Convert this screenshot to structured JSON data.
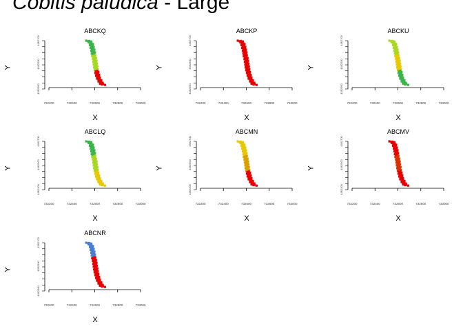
{
  "title": {
    "species": "Cobitis paludica",
    "separator": " - ",
    "size_class": "Large"
  },
  "chart_data": {
    "type": "scatter",
    "xlabel": "X",
    "ylabel": "Y",
    "xlim": [
      732200,
      733000
    ],
    "ylim": [
      4382280,
      4382700
    ],
    "x_ticks": [
      "732200",
      "732400",
      "732600",
      "732800",
      "733000"
    ],
    "y_ticks": [
      "4382300",
      "4382500",
      "4382700"
    ],
    "grid": false,
    "legend": "none",
    "panels": [
      {
        "name": "ABCKQ",
        "colors": {
          "top": "#3cb44b",
          "mid": "#a8d820",
          "bottom": "#e60000"
        }
      },
      {
        "name": "ABCKP",
        "colors": {
          "top": "#e60000",
          "mid": "#e60000",
          "bottom": "#e60000"
        }
      },
      {
        "name": "ABCKU",
        "colors": {
          "top": "#a8d820",
          "mid": "#e8c800",
          "bottom": "#3cb44b"
        }
      },
      {
        "name": "ABCLQ",
        "colors": {
          "top": "#3cb44b",
          "mid": "#a8d820",
          "bottom": "#e8c800"
        }
      },
      {
        "name": "ABCMN",
        "colors": {
          "top": "#e8c800",
          "mid": "#d8a000",
          "bottom": "#e60000"
        }
      },
      {
        "name": "ABCMV",
        "colors": {
          "top": "#e60000",
          "mid": "#d83000",
          "bottom": "#e60000"
        }
      },
      {
        "name": "ABCNR",
        "colors": {
          "top": "#4a7fd0",
          "mid": "#e60000",
          "bottom": "#e60000"
        }
      }
    ],
    "track": [
      [
        732540,
        4382700
      ],
      [
        732560,
        4382690
      ],
      [
        732570,
        4382670
      ],
      [
        732575,
        4382650
      ],
      [
        732580,
        4382630
      ],
      [
        732585,
        4382610
      ],
      [
        732588,
        4382590
      ],
      [
        732590,
        4382570
      ],
      [
        732595,
        4382550
      ],
      [
        732600,
        4382530
      ],
      [
        732602,
        4382510
      ],
      [
        732605,
        4382490
      ],
      [
        732608,
        4382470
      ],
      [
        732610,
        4382450
      ],
      [
        732615,
        4382430
      ],
      [
        732620,
        4382410
      ],
      [
        732625,
        4382390
      ],
      [
        732630,
        4382370
      ],
      [
        732640,
        4382350
      ],
      [
        732650,
        4382330
      ],
      [
        732660,
        4382315
      ],
      [
        732680,
        4382300
      ]
    ]
  }
}
